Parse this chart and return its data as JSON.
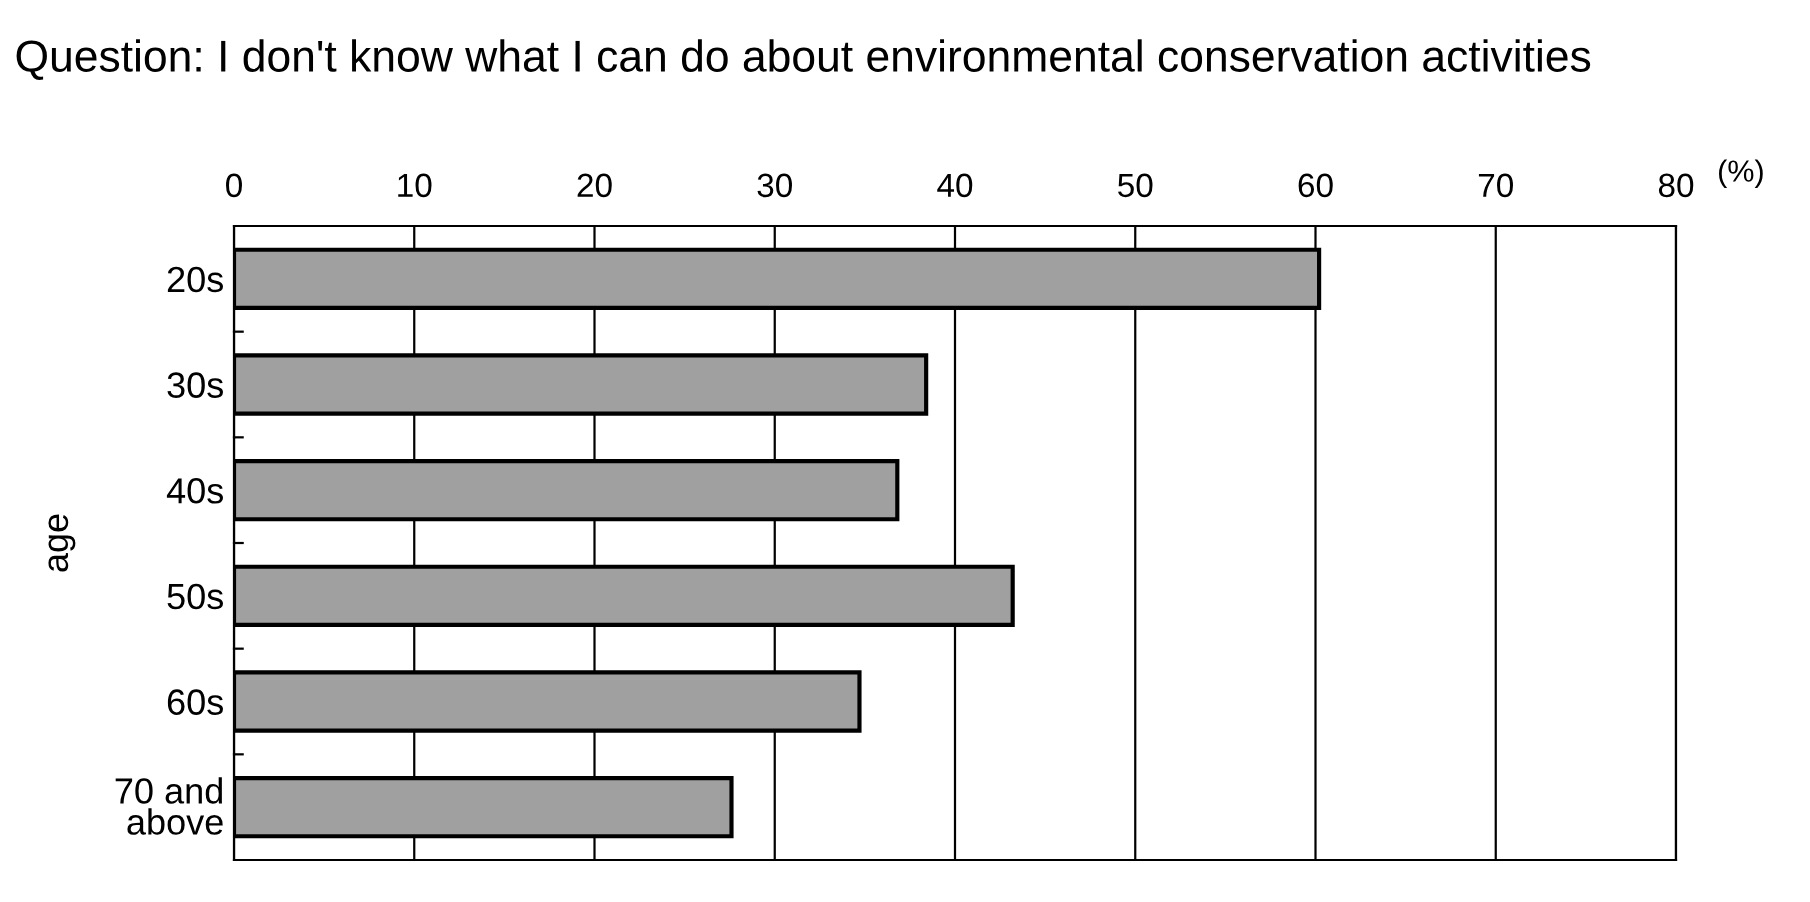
{
  "chart_data": {
    "type": "bar",
    "orientation": "horizontal",
    "title": "Question: I don't know what I can do about environmental conservation activities",
    "xlabel": "(%)",
    "ylabel": "age",
    "categories": [
      "20s",
      "30s",
      "40s",
      "50s",
      "60s",
      "70 and\nabove"
    ],
    "values": [
      60.2,
      38.4,
      36.8,
      43.2,
      34.7,
      27.6
    ],
    "color": "#a0a0a0",
    "xlim": [
      0,
      80
    ],
    "xticks": [
      0,
      10,
      20,
      30,
      40,
      50,
      60,
      70,
      80
    ],
    "grid": "x",
    "legend": false
  }
}
